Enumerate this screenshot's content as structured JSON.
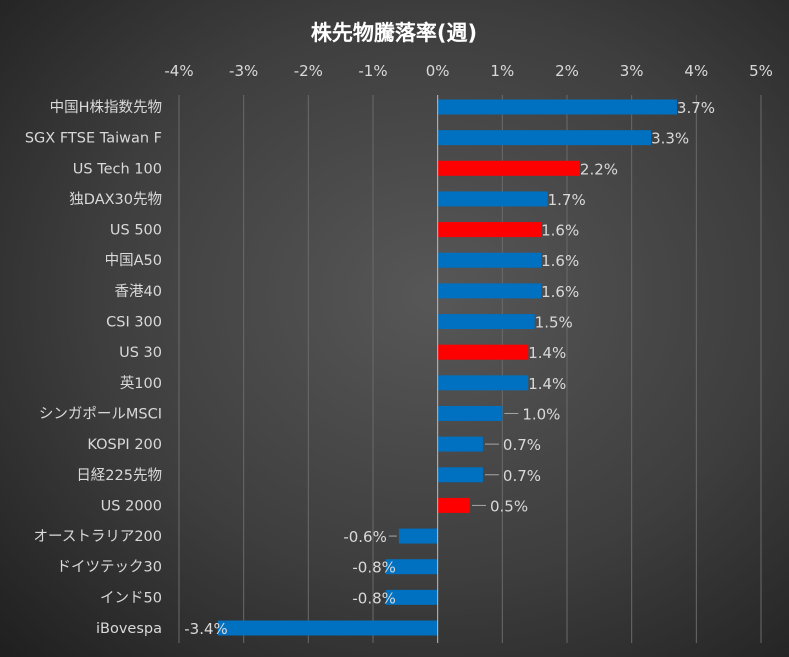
{
  "chart_data": {
    "type": "bar",
    "orientation": "horizontal",
    "title": "株先物騰落率(週)",
    "xlabel": "",
    "ylabel": "",
    "xlim": [
      -4,
      5
    ],
    "x_ticks": [
      "-4%",
      "-3%",
      "-2%",
      "-1%",
      "0%",
      "1%",
      "2%",
      "3%",
      "4%",
      "5%"
    ],
    "x_tick_values": [
      -4,
      -3,
      -2,
      -1,
      0,
      1,
      2,
      3,
      4,
      5
    ],
    "axis_position": "top",
    "grid": true,
    "categories": [
      "中国H株指数先物",
      "SGX FTSE Taiwan F",
      "US Tech 100",
      "独DAX30先物",
      "US 500",
      "中国A50",
      "香港40",
      "CSI 300",
      "US 30",
      "英100",
      "シンガポールMSCI",
      "KOSPI 200",
      "日経225先物",
      "US 2000",
      "オーストラリア200",
      "ドイツテック30",
      "インド50",
      "iBovespa"
    ],
    "values": [
      3.7,
      3.3,
      2.2,
      1.7,
      1.6,
      1.6,
      1.6,
      1.5,
      1.4,
      1.4,
      1.0,
      0.7,
      0.7,
      0.5,
      -0.6,
      -0.8,
      -0.8,
      -3.4
    ],
    "labels": [
      "3.7%",
      "3.3%",
      "2.2%",
      "1.7%",
      "1.6%",
      "1.6%",
      "1.6%",
      "1.5%",
      "1.4%",
      "1.4%",
      "1.0%",
      "0.7%",
      "0.7%",
      "0.5%",
      "-0.6%",
      "-0.8%",
      "-0.8%",
      "-3.4%"
    ],
    "highlight": [
      false,
      false,
      true,
      false,
      true,
      false,
      false,
      false,
      true,
      false,
      false,
      false,
      false,
      true,
      false,
      false,
      false,
      false
    ],
    "colors": {
      "default": "#0070C0",
      "highlight": "#FF0000",
      "grid": "#6a6a6a",
      "zero": "#bfbfbf"
    }
  }
}
